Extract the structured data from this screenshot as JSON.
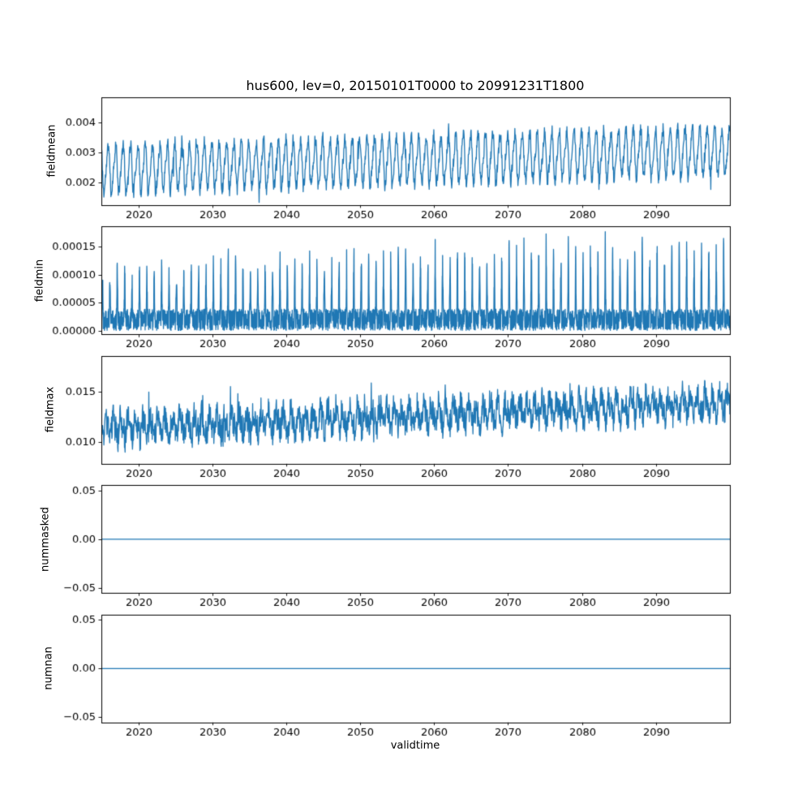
{
  "chart_data": {
    "type": "line",
    "title": "hus600, lev=0, 20150101T0000 to 20991231T1800",
    "xlabel": "validtime",
    "line_color": "#1f77b4",
    "background": "#ffffff",
    "grid": false,
    "legend": "none",
    "x": {
      "min": 2015,
      "max": 2100,
      "tick_values": [
        2020,
        2030,
        2040,
        2050,
        2060,
        2070,
        2080,
        2090
      ],
      "tick_labels": [
        "2020",
        "2030",
        "2040",
        "2050",
        "2060",
        "2070",
        "2080",
        "2090"
      ]
    },
    "plots": [
      {
        "ylabel": "fieldmean",
        "ylim": [
          0.00125,
          0.00485
        ],
        "ytick_values": [
          0.002,
          0.003,
          0.004
        ],
        "ytick_labels": [
          "0.002",
          "0.003",
          "0.004"
        ],
        "series": {
          "kind": "seasonal",
          "seed": 11,
          "points_per_year": 24,
          "base_start": 0.00245,
          "base_end": 0.00305,
          "amplitude": 0.00075,
          "amp2": 0.00015,
          "noise": 0.00022,
          "tail": 0.012,
          "tail_amp": 0.0007,
          "phase": 0.35
        }
      },
      {
        "ylabel": "fieldmin",
        "ylim": [
          -6e-06,
          0.000185
        ],
        "ytick_values": [
          0,
          5e-05,
          0.0001,
          0.00015
        ],
        "ytick_labels": [
          "0.00000",
          "0.00005",
          "0.00010",
          "0.00015"
        ],
        "series": {
          "kind": "spiky",
          "seed": 22,
          "points_per_year": 48,
          "floor": 1e-06,
          "band": 3.8e-05,
          "power": 14,
          "spike_base": 5.5e-05,
          "spike_rand": 5e-05,
          "growth": 0.0065,
          "phase": 0.1
        }
      },
      {
        "ylabel": "fieldmax",
        "ylim": [
          0.0078,
          0.0186
        ],
        "ytick_values": [
          0.01,
          0.015
        ],
        "ytick_labels": [
          "0.010",
          "0.015"
        ],
        "series": {
          "kind": "seasonal",
          "seed": 33,
          "points_per_year": 24,
          "base_start": 0.0113,
          "base_end": 0.0139,
          "amplitude": 0.0009,
          "amp2": 0.0003,
          "noise": 0.0014,
          "tail": 0.03,
          "tail_amp": 0.0022,
          "phase": 0.6
        }
      },
      {
        "ylabel": "nummasked",
        "ylim": [
          -0.0555,
          0.0555
        ],
        "ytick_values": [
          -0.05,
          0,
          0.05
        ],
        "ytick_labels": [
          "−0.05",
          "0.00",
          "0.05"
        ],
        "series": {
          "kind": "constant",
          "value": 0,
          "points_per_year": 1,
          "seed": 1
        }
      },
      {
        "ylabel": "numnan",
        "ylim": [
          -0.0555,
          0.0555
        ],
        "ytick_values": [
          -0.05,
          0,
          0.05
        ],
        "ytick_labels": [
          "−0.05",
          "0.00",
          "0.05"
        ],
        "series": {
          "kind": "constant",
          "value": 0,
          "points_per_year": 1,
          "seed": 2
        }
      }
    ]
  }
}
